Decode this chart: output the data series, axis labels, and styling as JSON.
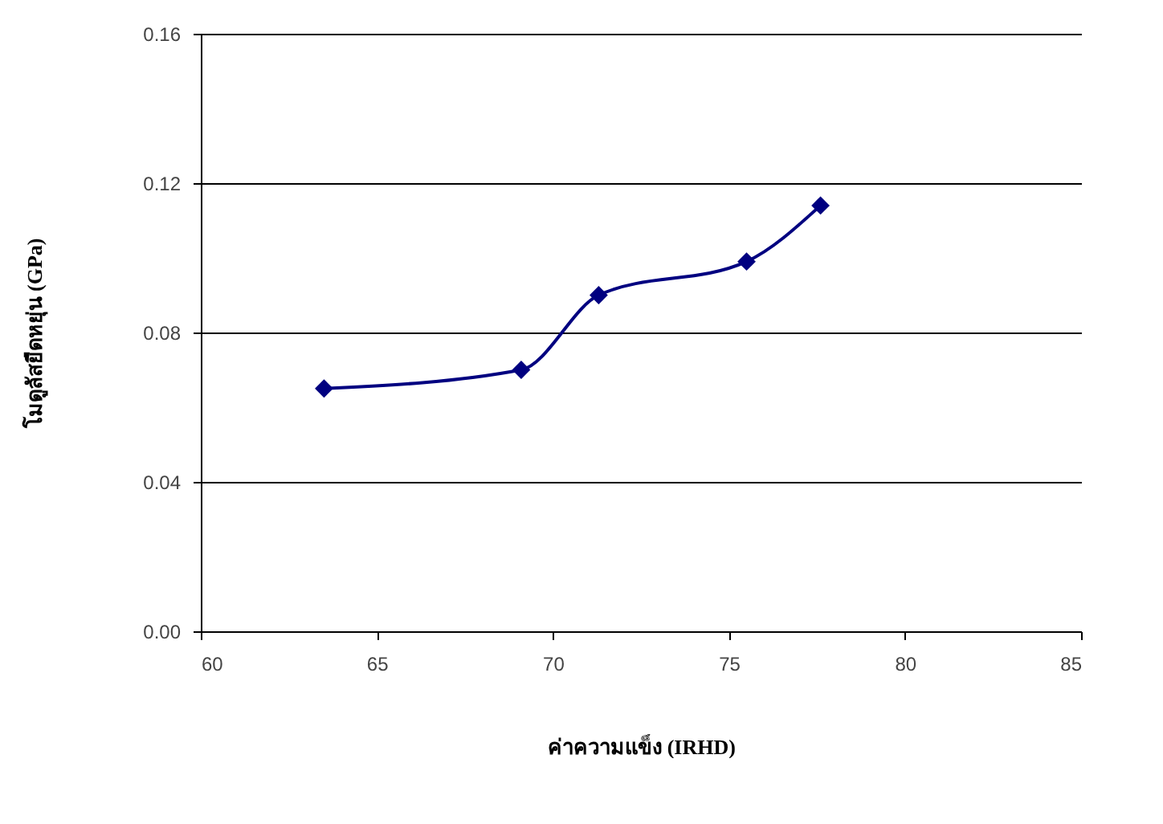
{
  "chart_data": {
    "type": "line",
    "xlabel": "ค่าความแข็ง (IRHD)",
    "ylabel": "โมดูลัสยืดหยุ่น (GPa)",
    "x": [
      63.5,
      69.1,
      71.3,
      75.5,
      77.6
    ],
    "series": [
      {
        "color": "#000080",
        "values": [
          0.065,
          0.07,
          0.09,
          0.099,
          0.114
        ]
      }
    ],
    "xlim": [
      60,
      85
    ],
    "xticks": [
      60,
      65,
      70,
      75,
      80,
      85
    ],
    "ylim": [
      0,
      0.16
    ],
    "yticks": [
      {
        "value": 0,
        "label": "0.00"
      },
      {
        "value": 0.04,
        "label": "0.04"
      },
      {
        "value": 0.08,
        "label": "0.08"
      },
      {
        "value": 0.12,
        "label": "0.12"
      },
      {
        "value": 0.16,
        "label": "0.16"
      }
    ],
    "grid": "y",
    "marker": "diamond",
    "line_style": "solid"
  }
}
